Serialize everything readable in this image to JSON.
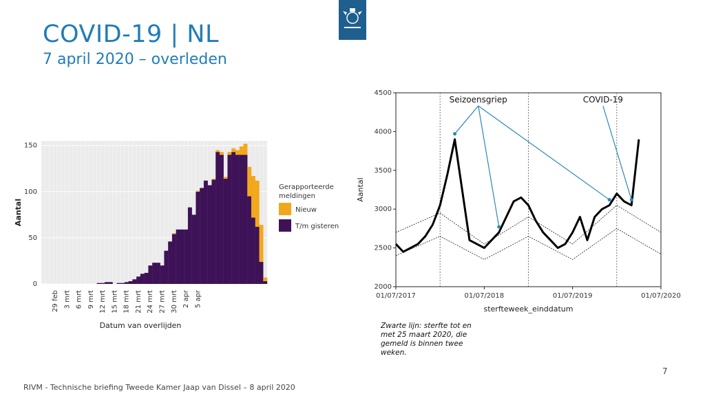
{
  "slide": {
    "title": "COVID-19 | NL",
    "subtitle": "7 april 2020 – overleden",
    "footer": "RIVM - Technische briefing Tweede Kamer Jaap van Dissel – 8 april 2020",
    "page_number": "7",
    "note": "Zwarte lijn: sterfte tot en met 25 maart 2020, die gemeld is binnen twee weken."
  },
  "logo": {
    "icon": "rijksoverheid-coat-of-arms-icon",
    "color": "#1e5f8f"
  },
  "chart_data": [
    {
      "type": "bar",
      "stacked": true,
      "xlabel": "Datum van overlijden",
      "ylabel": "Aantal",
      "ylim": [
        0,
        155
      ],
      "yticks": [
        0,
        50,
        100,
        150
      ],
      "xtick_labels": [
        "29 feb",
        "3 mrt",
        "6 mrt",
        "9 mrt",
        "12 mrt",
        "15 mrt",
        "18 mrt",
        "21 mrt",
        "24 mrt",
        "27 mrt",
        "30 mrt",
        "2 apr",
        "5 apr"
      ],
      "xtick_positions": [
        3,
        6,
        9,
        12,
        15,
        18,
        21,
        24,
        27,
        30,
        33,
        36,
        39
      ],
      "legend": {
        "title": "Gerapporteerde meldingen",
        "placement": "right"
      },
      "series": [
        {
          "name": "Nieuw",
          "color": "#f2a81d",
          "values": [
            0,
            0,
            0,
            0,
            0,
            0,
            0,
            0,
            0,
            0,
            0,
            0,
            0,
            0,
            0,
            0,
            0,
            0,
            0,
            0,
            0,
            0,
            0,
            0,
            0,
            0,
            0,
            0,
            0,
            0,
            0,
            0,
            0,
            1,
            0,
            0,
            0,
            0,
            0,
            1,
            0,
            0,
            0,
            1,
            2,
            3,
            2,
            3,
            4,
            5,
            9,
            12,
            32,
            45,
            50,
            40,
            4
          ]
        },
        {
          "name": "T/m gisteren",
          "color": "#3e1257",
          "values": [
            0,
            0,
            0,
            0,
            0,
            0,
            0,
            0,
            0,
            0,
            0,
            0,
            0,
            0,
            1,
            1,
            2,
            2,
            0,
            1,
            1,
            2,
            3,
            5,
            8,
            11,
            12,
            20,
            23,
            23,
            20,
            36,
            46,
            54,
            59,
            59,
            59,
            83,
            75,
            100,
            104,
            112,
            107,
            113,
            143,
            140,
            114,
            140,
            143,
            140,
            140,
            140,
            95,
            72,
            62,
            24,
            3
          ]
        }
      ]
    },
    {
      "type": "line",
      "xlabel": "sterfteweek_einddatum",
      "ylabel": "Aantal",
      "ylim": [
        2000,
        4500
      ],
      "yticks": [
        2000,
        2500,
        3000,
        3500,
        4000,
        4500
      ],
      "xlim": [
        "01/07/2017",
        "01/07/2020"
      ],
      "xtick_labels": [
        "01/07/2017",
        "01/07/2018",
        "01/07/2019",
        "01/07/2020"
      ],
      "annotations": [
        {
          "text": "Seizoensgriep",
          "targets": [
            "2018-03",
            "2018-09",
            "2019-12"
          ]
        },
        {
          "text": "COVID-19",
          "targets": [
            "2020-03"
          ]
        }
      ],
      "vertical_lines": [
        "2018-01",
        "2019-01",
        "2020-01"
      ],
      "series": [
        {
          "name": "",
          "x": [
            "2017-07",
            "2017-08",
            "2017-09",
            "2017-10",
            "2017-11",
            "2017-12",
            "2018-01",
            "2018-02",
            "2018-03",
            "2018-04",
            "2018-05",
            "2018-06",
            "2018-07",
            "2018-08",
            "2018-09",
            "2018-10",
            "2018-11",
            "2018-12",
            "2019-01",
            "2019-02",
            "2019-03",
            "2019-04",
            "2019-05",
            "2019-06",
            "2019-07",
            "2019-08",
            "2019-09",
            "2019-10",
            "2019-11",
            "2019-12",
            "2020-01",
            "2020-02",
            "2020-03",
            "2020-04"
          ],
          "values": [
            2550,
            2450,
            2500,
            2550,
            2650,
            2800,
            3050,
            3450,
            3900,
            3250,
            2600,
            2550,
            2500,
            2600,
            2700,
            2900,
            3100,
            3150,
            3050,
            2850,
            2700,
            2600,
            2500,
            2550,
            2700,
            2900,
            2600,
            2900,
            3000,
            3050,
            3200,
            3100,
            3050,
            3900
          ]
        },
        {
          "name": "",
          "x": [
            "2017-07",
            "2018-01",
            "2018-07",
            "2019-01",
            "2019-07",
            "2020-01",
            "2020-07"
          ],
          "values": [
            2700,
            2950,
            2550,
            2900,
            2550,
            3050,
            2700
          ]
        },
        {
          "name": "",
          "x": [
            "2017-07",
            "2018-01",
            "2018-07",
            "2019-01",
            "2019-07",
            "2020-01",
            "2020-07"
          ],
          "values": [
            2400,
            2650,
            2350,
            2650,
            2350,
            2750,
            2420
          ]
        }
      ]
    }
  ]
}
